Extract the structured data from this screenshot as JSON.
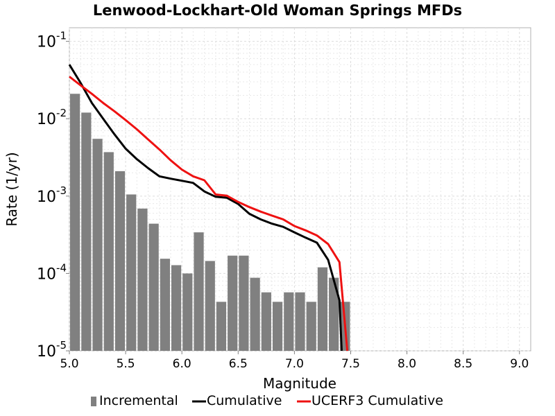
{
  "chart_data": {
    "type": "bar",
    "title": "Lenwood-Lockhart-Old Woman Springs MFDs",
    "xlabel": "Magnitude",
    "ylabel": "Rate (1/yr)",
    "xlim": [
      5.0,
      9.1
    ],
    "ylim": [
      1e-05,
      0.15
    ],
    "yscale": "log",
    "grid": true,
    "legend_position": "bottom",
    "x_ticks": [
      "5.0",
      "5.5",
      "6.0",
      "6.5",
      "7.0",
      "7.5",
      "8.0",
      "8.5",
      "9.0"
    ],
    "y_ticks": [
      {
        "base": "10",
        "exp": "-1",
        "value": 0.1
      },
      {
        "base": "10",
        "exp": "-2",
        "value": 0.01
      },
      {
        "base": "10",
        "exp": "-3",
        "value": 0.001
      },
      {
        "base": "10",
        "exp": "-4",
        "value": 0.0001
      },
      {
        "base": "10",
        "exp": "-5",
        "value": 1e-05
      }
    ],
    "series": [
      {
        "name": "Incremental",
        "type": "bar",
        "color": "#808080",
        "x": [
          5.05,
          5.15,
          5.25,
          5.35,
          5.45,
          5.55,
          5.65,
          5.75,
          5.85,
          5.95,
          6.05,
          6.15,
          6.25,
          6.35,
          6.45,
          6.55,
          6.65,
          6.75,
          6.85,
          6.95,
          7.05,
          7.15,
          7.25,
          7.35,
          7.45
        ],
        "values": [
          0.021,
          0.012,
          0.0055,
          0.0037,
          0.0021,
          0.00105,
          0.00069,
          0.00044,
          0.000155,
          0.000128,
          0.0001,
          0.00034,
          0.000145,
          4.3e-05,
          0.00017,
          0.00017,
          8.8e-05,
          5.7e-05,
          4.3e-05,
          5.7e-05,
          5.7e-05,
          4.3e-05,
          0.00012,
          8.8e-05,
          4.3e-05
        ]
      },
      {
        "name": "Cumulative",
        "type": "line",
        "color": "#000000",
        "x": [
          5.0,
          5.1,
          5.2,
          5.3,
          5.4,
          5.5,
          5.6,
          5.7,
          5.8,
          5.9,
          6.0,
          6.1,
          6.2,
          6.3,
          6.4,
          6.5,
          6.6,
          6.7,
          6.8,
          6.9,
          7.0,
          7.1,
          7.2,
          7.3,
          7.4,
          7.42
        ],
        "values": [
          0.05,
          0.029,
          0.016,
          0.01,
          0.0063,
          0.0041,
          0.003,
          0.0023,
          0.0018,
          0.00168,
          0.00158,
          0.00148,
          0.00115,
          0.00098,
          0.00095,
          0.00079,
          0.00059,
          0.0005,
          0.00044,
          0.0004,
          0.00034,
          0.00029,
          0.00025,
          0.00015,
          4.5e-05,
          1e-05
        ]
      },
      {
        "name": "UCERF3 Cumulative",
        "type": "line",
        "color": "#ee1111",
        "x": [
          5.0,
          5.1,
          5.2,
          5.3,
          5.4,
          5.5,
          5.6,
          5.7,
          5.8,
          5.9,
          6.0,
          6.1,
          6.2,
          6.3,
          6.4,
          6.5,
          6.6,
          6.7,
          6.8,
          6.9,
          7.0,
          7.1,
          7.2,
          7.3,
          7.4,
          7.47
        ],
        "values": [
          0.035,
          0.027,
          0.021,
          0.016,
          0.0125,
          0.0096,
          0.0073,
          0.0054,
          0.004,
          0.0029,
          0.0022,
          0.0018,
          0.0016,
          0.00105,
          0.00101,
          0.00084,
          0.00072,
          0.00063,
          0.00056,
          0.0005,
          0.00041,
          0.00036,
          0.00031,
          0.00024,
          0.00014,
          1e-05
        ]
      }
    ]
  }
}
